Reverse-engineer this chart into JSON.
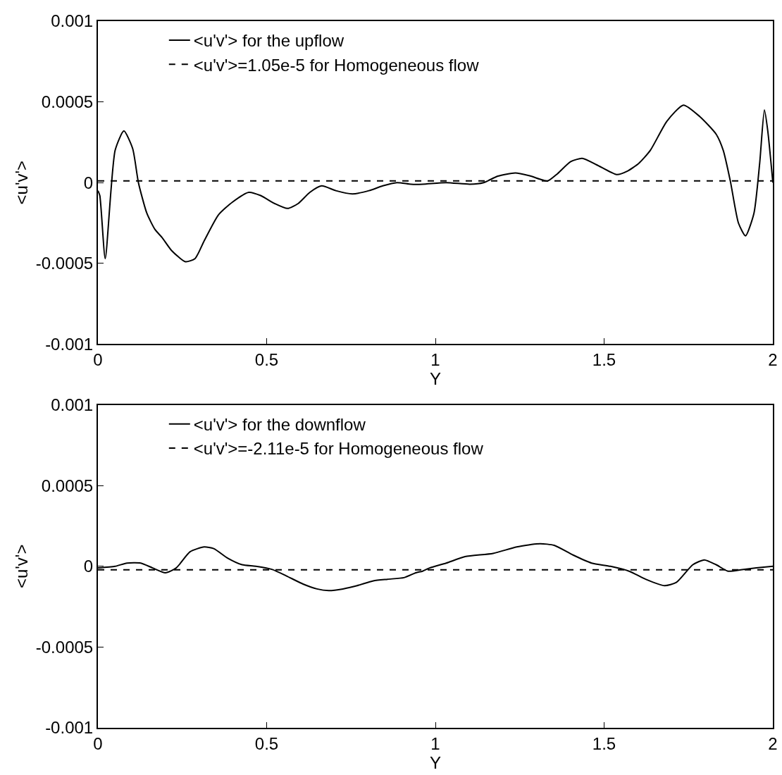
{
  "chart_data": [
    {
      "type": "line",
      "xlabel": "Y",
      "ylabel": "<u'v'>",
      "xlim": [
        0,
        2
      ],
      "xticks": [
        0,
        0.5,
        1,
        1.5,
        2
      ],
      "ylim": [
        -0.001,
        0.001
      ],
      "yticks": [
        -0.001,
        -0.0005,
        0,
        0.0005,
        0.001
      ],
      "grid": false,
      "legend": "top",
      "marker": "none",
      "series": [
        {
          "name": "<u'v'> for the upflow",
          "color": "#000000",
          "line_style": "solid",
          "x": [
            0,
            0.0056,
            0.0216,
            0.051,
            0.077,
            0.103,
            0.12,
            0.145,
            0.169,
            0.19,
            0.218,
            0.2595,
            0.288,
            0.315,
            0.357,
            0.399,
            0.447,
            0.482,
            0.524,
            0.562,
            0.593,
            0.628,
            0.663,
            0.705,
            0.754,
            0.803,
            0.844,
            0.886,
            0.928,
            0.962,
            1.032,
            1.102,
            1.143,
            1.185,
            1.237,
            1.283,
            1.332,
            1.359,
            1.401,
            1.435,
            1.478,
            1.537,
            1.568,
            1.603,
            1.637,
            1.686,
            1.735,
            1.783,
            1.832,
            1.853,
            1.874,
            1.898,
            1.919,
            1.944,
            1.961,
            1.975,
            1.985,
            2
          ],
          "values": [
            -5e-05,
            -8e-05,
            -0.00047,
            0.0002,
            0.00032,
            0.00021,
            0,
            -0.00019,
            -0.00029,
            -0.00034,
            -0.00042,
            -0.00049,
            -0.00047,
            -0.00036,
            -0.0002,
            -0.00012,
            -6e-05,
            -8e-05,
            -0.00013,
            -0.00016,
            -0.00013,
            -6e-05,
            -2e-05,
            -5e-05,
            -7e-05,
            -5e-05,
            -2e-05,
            0,
            -1e-05,
            -1e-05,
            0,
            -1e-05,
            0,
            4e-05,
            6e-05,
            4e-05,
            1e-05,
            5e-05,
            0.00013,
            0.00015,
            0.00011,
            5e-05,
            7e-05,
            0.00012,
            0.0002,
            0.00038,
            0.00048,
            0.00041,
            0.0003,
            0.0002,
            1e-05,
            -0.00025,
            -0.00033,
            -0.00019,
            0.00012,
            0.00045,
            0.00032,
            0
          ]
        },
        {
          "name": "<u'v'>=1.05e-5 for Homogeneous flow",
          "color": "#000000",
          "line_style": "dashed",
          "x": [
            0,
            2
          ],
          "values": [
            1.05e-05,
            1.05e-05
          ]
        }
      ]
    },
    {
      "type": "line",
      "xlabel": "Y",
      "ylabel": "<u'v'>",
      "xlim": [
        0,
        2
      ],
      "xticks": [
        0,
        0.5,
        1,
        1.5,
        2
      ],
      "ylim": [
        -0.001,
        0.001
      ],
      "yticks": [
        -0.001,
        -0.0005,
        0,
        0.0005,
        0.001
      ],
      "grid": false,
      "legend": "top",
      "marker": "none",
      "series": [
        {
          "name": "<u'v'> for the downflow",
          "color": "#000000",
          "line_style": "solid",
          "x": [
            0,
            0.051,
            0.086,
            0.127,
            0.162,
            0.2,
            0.232,
            0.273,
            0.315,
            0.343,
            0.385,
            0.427,
            0.468,
            0.517,
            0.559,
            0.608,
            0.649,
            0.684,
            0.726,
            0.768,
            0.816,
            0.858,
            0.907,
            0.942,
            0.962,
            0.983,
            1.032,
            1.088,
            1.171,
            1.241,
            1.31,
            1.352,
            1.408,
            1.463,
            1.519,
            1.574,
            1.623,
            1.679,
            1.714,
            1.763,
            1.797,
            1.832,
            1.867,
            1.909,
            1.951,
            2
          ],
          "values": [
            -1e-05,
            0,
            2e-05,
            2e-05,
            -1e-05,
            -4e-05,
            -1e-05,
            9e-05,
            0.00012,
            0.00011,
            5e-05,
            1e-05,
            0,
            -2e-05,
            -6e-05,
            -0.00011,
            -0.00014,
            -0.00015,
            -0.00014,
            -0.00012,
            -9e-05,
            -8e-05,
            -7e-05,
            -4e-05,
            -3e-05,
            -1e-05,
            2e-05,
            6e-05,
            8e-05,
            0.00012,
            0.00014,
            0.00013,
            7e-05,
            2e-05,
            0,
            -3e-05,
            -8e-05,
            -0.00012,
            -0.0001,
            1e-05,
            4e-05,
            1e-05,
            -3e-05,
            -2e-05,
            -1e-05,
            0
          ]
        },
        {
          "name": "<u'v'>=-2.11e-5 for Homogeneous flow",
          "color": "#000000",
          "line_style": "dashed",
          "x": [
            0,
            2
          ],
          "values": [
            -2.11e-05,
            -2.11e-05
          ]
        }
      ]
    }
  ]
}
